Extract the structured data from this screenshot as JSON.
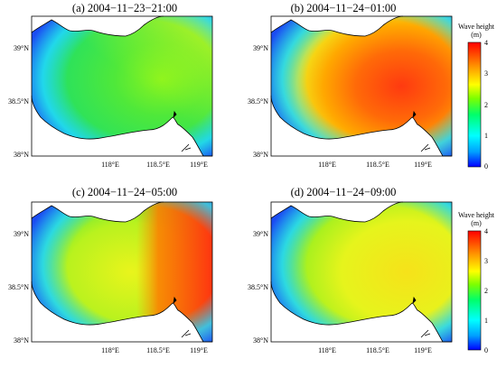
{
  "panels": [
    {
      "title": "(a) 2004−11−23−21:00",
      "scheme": "a"
    },
    {
      "title": "(b) 2004−11−24−01:00",
      "scheme": "b"
    },
    {
      "title": "(c) 2004−11−24−05:00",
      "scheme": "c"
    },
    {
      "title": "(d) 2004−11−24−09:00",
      "scheme": "d"
    }
  ],
  "axes": {
    "lat_ticks": [
      "39°N",
      "38.5°N",
      "38°N"
    ],
    "lon_ticks": [
      "118°E",
      "118.5°E",
      "119°E"
    ]
  },
  "colorbar": {
    "label_line1": "Wave height",
    "label_line2": "(m)",
    "range": [
      0,
      4
    ],
    "ticks": [
      "4",
      "3",
      "2",
      "1",
      "0"
    ],
    "colors": [
      "#0000ff",
      "#00b4ff",
      "#00ffff",
      "#00ff66",
      "#7cff00",
      "#ffff00",
      "#ff9900",
      "#ff3300",
      "#ff0000"
    ]
  },
  "colors": {
    "land": "#ffffff",
    "deep_blue": "#1b4cf2",
    "cyan": "#1fd6ff",
    "green": "#2de854",
    "yellow": "#e6f51a",
    "orange": "#ff8a00",
    "red": "#ff3a10"
  }
}
